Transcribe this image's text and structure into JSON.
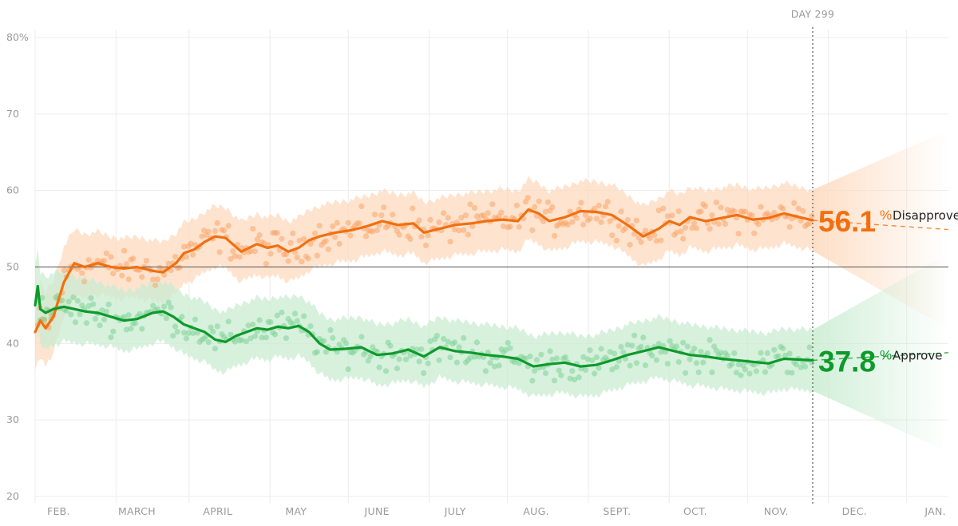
{
  "chart_data": {
    "type": "line",
    "ylim": [
      20,
      80
    ],
    "y_ticks": [
      "80%",
      "70",
      "60",
      "50",
      "40",
      "30",
      "20"
    ],
    "y_tick_values": [
      80,
      70,
      60,
      50,
      40,
      30,
      20
    ],
    "x_range_days": [
      1,
      351
    ],
    "month_labels": [
      "FEB.",
      "MARCH",
      "APRIL",
      "MAY",
      "JUNE",
      "JULY",
      "AUG.",
      "SEPT.",
      "OCT.",
      "NOV.",
      "DEC.",
      "JAN."
    ],
    "month_label_days": [
      10,
      40,
      71,
      101,
      132,
      162,
      193,
      224,
      254,
      285,
      315,
      346
    ],
    "month_gridline_days": [
      1,
      32,
      60,
      91,
      121,
      152,
      182,
      213,
      244,
      274,
      305,
      335
    ],
    "reference_line": 50,
    "grid": true,
    "current_day_label": "DAY 299",
    "current_day": 299,
    "series": [
      {
        "name": "Disapprove",
        "current_value": "56.1",
        "pct_sign": "%",
        "color": "#f26f0f",
        "band_color": "#fdd9bd",
        "dot_color": "#f7a66a",
        "x": [
          1,
          3,
          5,
          8,
          12,
          16,
          20,
          25,
          30,
          35,
          40,
          46,
          50,
          55,
          58,
          62,
          66,
          70,
          74,
          80,
          86,
          90,
          94,
          98,
          102,
          106,
          110,
          116,
          122,
          128,
          134,
          140,
          146,
          150,
          156,
          162,
          168,
          174,
          180,
          186,
          190,
          194,
          198,
          204,
          210,
          216,
          222,
          228,
          234,
          240,
          244,
          248,
          252,
          258,
          264,
          270,
          276,
          282,
          288,
          294,
          299
        ],
        "values": [
          41.5,
          43,
          42,
          43.5,
          48,
          50.5,
          50,
          50.5,
          50,
          49.8,
          50,
          49.5,
          49.3,
          50.5,
          51.8,
          52.3,
          53.3,
          54,
          53.8,
          52,
          53,
          52.5,
          52.8,
          52,
          52.5,
          53.5,
          54,
          54.5,
          54.8,
          55.3,
          56,
          55.5,
          55.7,
          54.5,
          55,
          55.5,
          55.7,
          56,
          56.2,
          56,
          57.5,
          57,
          56,
          56.5,
          57.3,
          57.2,
          56.8,
          55.5,
          54,
          55,
          56,
          55.5,
          56.5,
          56,
          56.4,
          56.8,
          56.2,
          56.4,
          57,
          56.5,
          56.1
        ],
        "projection_end_day": 351,
        "projection_end_value": 54.9
      },
      {
        "name": "Approve",
        "current_value": "37.8",
        "pct_sign": "%",
        "color": "#0d9a2b",
        "band_color": "#c9ecd1",
        "dot_color": "#7fd195",
        "x": [
          1,
          2,
          3,
          5,
          8,
          12,
          16,
          20,
          25,
          30,
          35,
          40,
          46,
          50,
          54,
          58,
          62,
          66,
          70,
          74,
          78,
          82,
          86,
          90,
          94,
          98,
          102,
          106,
          110,
          114,
          120,
          126,
          132,
          138,
          144,
          150,
          156,
          162,
          168,
          174,
          180,
          186,
          192,
          198,
          204,
          210,
          216,
          222,
          228,
          234,
          240,
          246,
          252,
          258,
          264,
          270,
          276,
          282,
          288,
          294,
          299
        ],
        "values": [
          45,
          47.5,
          44.5,
          44,
          44.5,
          44.8,
          44.5,
          44.2,
          44,
          43.5,
          43,
          43.2,
          44,
          44.2,
          43.5,
          42.5,
          42,
          41.5,
          40.5,
          40.2,
          41,
          41.5,
          42,
          41.8,
          42.2,
          42,
          42.3,
          41.5,
          40,
          39.2,
          39.3,
          39.5,
          38.5,
          38.7,
          39.2,
          38.3,
          39.5,
          39,
          38.8,
          38.5,
          38.3,
          38,
          37,
          37.3,
          37.5,
          37,
          37.2,
          37.8,
          38.5,
          39,
          39.5,
          39,
          38.5,
          38.3,
          38,
          37.8,
          37.6,
          37.4,
          38,
          37.9,
          37.8
        ],
        "projection_end_day": 351,
        "projection_end_value": 38.8
      }
    ]
  },
  "colors": {
    "disapprove": "#f26f0f",
    "approve": "#0d9a2b",
    "grid": "#ececec",
    "reference": "#555555",
    "day_marker": "#555555"
  }
}
